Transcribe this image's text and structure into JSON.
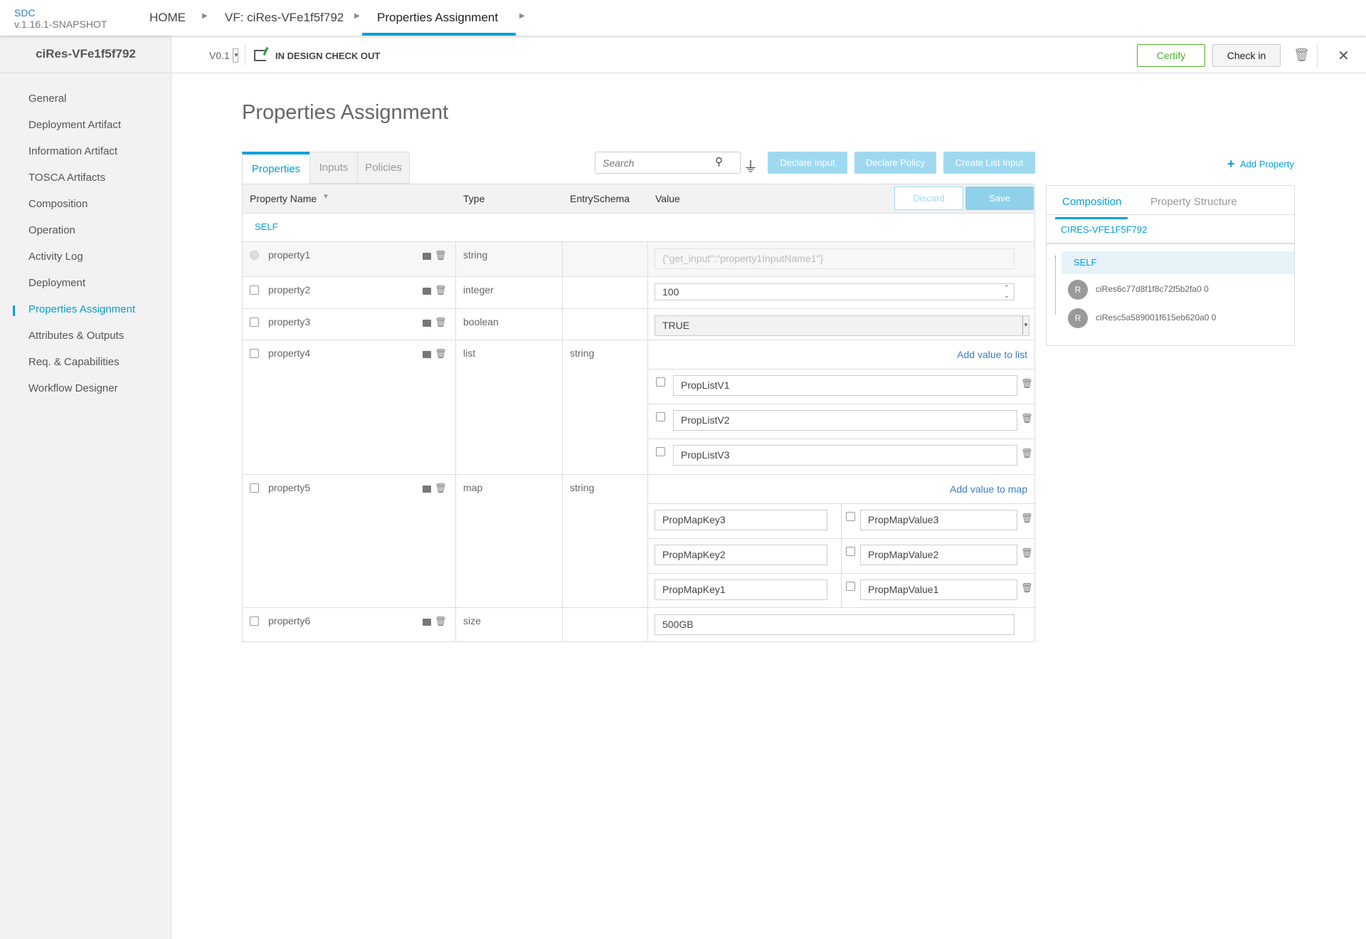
{
  "app": {
    "name": "SDC",
    "version": "v.1.16.1-SNAPSHOT"
  },
  "breadcrumb": [
    "HOME",
    "VF: ciRes-VFe1f5f792",
    "Properties Assignment"
  ],
  "sidebar": {
    "title": "ciRes-VFe1f5f792",
    "items": [
      "General",
      "Deployment Artifact",
      "Information Artifact",
      "TOSCA Artifacts",
      "Composition",
      "Operation",
      "Activity Log",
      "Deployment",
      "Properties Assignment",
      "Attributes & Outputs",
      "Req. & Capabilities",
      "Workflow Designer"
    ],
    "active": "Properties Assignment"
  },
  "subbar": {
    "version": "V0.1",
    "status": "IN DESIGN CHECK OUT",
    "certify": "Certify",
    "checkin": "Check in"
  },
  "page_title": "Properties Assignment",
  "tabs": [
    "Properties",
    "Inputs",
    "Policies"
  ],
  "search_placeholder": "Search",
  "actions": {
    "declare_input": "Declare Input",
    "declare_policy": "Declare Policy",
    "create_list_input": "Create List Input",
    "add_property": "Add Property",
    "discard": "Discard",
    "save": "Save"
  },
  "columns": [
    "Property Name",
    "Type",
    "EntrySchema",
    "Value"
  ],
  "group": "SELF",
  "rows": [
    {
      "name": "property1",
      "type": "string",
      "schema": "",
      "value": "{\"get_input\":\"property1InputName1\"}"
    },
    {
      "name": "property2",
      "type": "integer",
      "schema": "",
      "value": "100"
    },
    {
      "name": "property3",
      "type": "boolean",
      "schema": "",
      "value": "TRUE"
    },
    {
      "name": "property4",
      "type": "list",
      "schema": "string",
      "add": "Add value to list",
      "list": [
        "PropListV1",
        "PropListV2",
        "PropListV3"
      ]
    },
    {
      "name": "property5",
      "type": "map",
      "schema": "string",
      "add": "Add value to map",
      "map": [
        {
          "k": "PropMapKey3",
          "v": "PropMapValue3"
        },
        {
          "k": "PropMapKey2",
          "v": "PropMapValue2"
        },
        {
          "k": "PropMapKey1",
          "v": "PropMapValue1"
        }
      ]
    },
    {
      "name": "property6",
      "type": "size",
      "schema": "",
      "value": "500GB"
    }
  ],
  "panel": {
    "tabs": [
      "Composition",
      "Property Structure"
    ],
    "root": "CIRES-VFE1F5F792",
    "self": "SELF",
    "instances": [
      {
        "badge": "R",
        "name": "ciRes6c77d8f1f8c72f5b2fa0 0"
      },
      {
        "badge": "R",
        "name": "ciResc5a589001f615eb620a0 0"
      }
    ]
  },
  "colors": {
    "accent": "#009fdb",
    "certify": "#4caf28",
    "button_light": "#9fd9f0"
  }
}
